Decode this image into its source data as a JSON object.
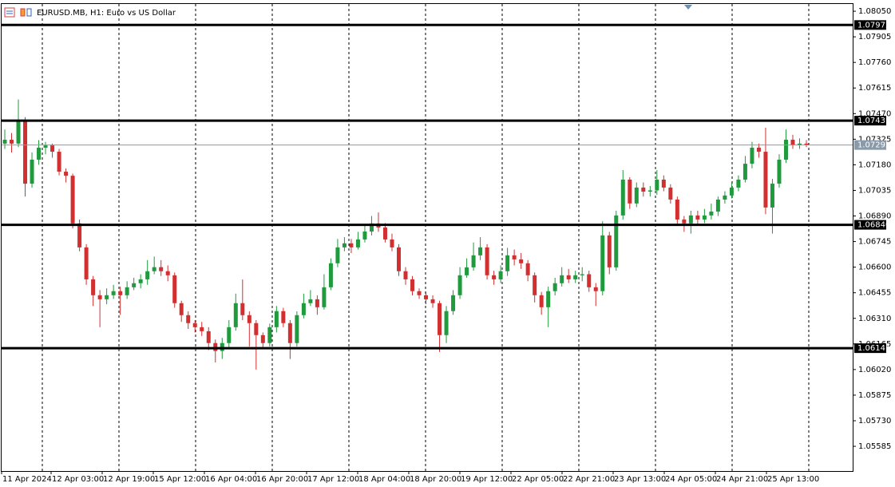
{
  "chart_data": {
    "type": "candlestick",
    "title": "EURUSD.MB, H1:  Euro vs US Dollar",
    "up_color": "#1f9a3c",
    "down_color": "#d23030",
    "ylim": [
      1.05445,
      1.08091
    ],
    "yticks": [
      {
        "value": 1.0805,
        "label": "1.08050"
      },
      1.07905,
      {
        "value": 1.0776,
        "label": "1.07760"
      },
      1.07615,
      {
        "value": 1.0747,
        "label": "1.07470"
      },
      1.07325,
      {
        "value": 1.0718,
        "label": "1.07180"
      },
      1.07035,
      {
        "value": 1.0689,
        "label": "1.06890"
      },
      1.06745,
      {
        "value": 1.066,
        "label": "1.06600"
      },
      1.06455,
      {
        "value": 1.0631,
        "label": "1.06310"
      },
      1.06165,
      {
        "value": 1.0602,
        "label": "1.06020"
      },
      1.05875,
      {
        "value": 1.0573,
        "label": "1.05730"
      },
      1.05585
    ],
    "levels": [
      1.07972,
      1.0743,
      {
        "value": 1.0684,
        "label": "1.06840"
      },
      1.06141
    ],
    "current_price": 1.07292,
    "x_labels": [
      "11 Apr 2024",
      "12 Apr 03:00",
      "12 Apr 19:00",
      "15 Apr 12:00",
      "16 Apr 04:00",
      "16 Apr 20:00",
      "17 Apr 12:00",
      "18 Apr 04:00",
      "18 Apr 20:00",
      "19 Apr 12:00",
      "22 Apr 05:00",
      "22 Apr 21:00",
      "23 Apr 13:00",
      "24 Apr 05:00",
      "24 Apr 21:00",
      "25 Apr 13:00"
    ],
    "ohlc": [
      [
        1.073,
        1.0738,
        1.0727,
        1.07322
      ],
      [
        1.07322,
        1.0736,
        1.0725,
        1.073
      ],
      [
        1.073,
        1.0755,
        1.0728,
        1.07435
      ],
      [
        1.07435,
        1.0745,
        1.07,
        1.07073
      ],
      [
        1.07073,
        1.0725,
        1.0705,
        1.07209
      ],
      [
        1.07209,
        1.0732,
        1.0718,
        1.07277
      ],
      [
        1.07277,
        1.0731,
        1.0724,
        1.0729
      ],
      [
        1.0729,
        1.073,
        1.0722,
        1.07254
      ],
      [
        1.07254,
        1.0727,
        1.0712,
        1.07141
      ],
      [
        1.07141,
        1.0716,
        1.0708,
        1.07118
      ],
      [
        1.07118,
        1.0713,
        1.0682,
        1.06848
      ],
      [
        1.06848,
        1.0687,
        1.0669,
        1.06712
      ],
      [
        1.06712,
        1.0673,
        1.065,
        1.06531
      ],
      [
        1.06531,
        1.0655,
        1.0638,
        1.06441
      ],
      [
        1.06441,
        1.0647,
        1.0626,
        1.06418
      ],
      [
        1.06418,
        1.0648,
        1.0639,
        1.06441
      ],
      [
        1.06441,
        1.065,
        1.0642,
        1.06464
      ],
      [
        1.06464,
        1.0649,
        1.0633,
        1.06441
      ],
      [
        1.06441,
        1.0652,
        1.0642,
        1.06486
      ],
      [
        1.06486,
        1.0654,
        1.0647,
        1.06509
      ],
      [
        1.06509,
        1.0656,
        1.0648,
        1.06531
      ],
      [
        1.06531,
        1.0664,
        1.065,
        1.06577
      ],
      [
        1.06577,
        1.0666,
        1.0656,
        1.066
      ],
      [
        1.066,
        1.0664,
        1.0655,
        1.06577
      ],
      [
        1.06577,
        1.0661,
        1.0652,
        1.06554
      ],
      [
        1.06554,
        1.0657,
        1.0637,
        1.06396
      ],
      [
        1.06396,
        1.0641,
        1.0629,
        1.06328
      ],
      [
        1.06328,
        1.0635,
        1.0625,
        1.06283
      ],
      [
        1.06283,
        1.063,
        1.0623,
        1.0626
      ],
      [
        1.0626,
        1.0629,
        1.0621,
        1.06237
      ],
      [
        1.06237,
        1.0626,
        1.0613,
        1.0617
      ],
      [
        1.0617,
        1.0619,
        1.0606,
        1.06125
      ],
      [
        1.06125,
        1.062,
        1.0608,
        1.0617
      ],
      [
        1.0617,
        1.063,
        1.0614,
        1.0626
      ],
      [
        1.0626,
        1.0645,
        1.0624,
        1.06396
      ],
      [
        1.06396,
        1.0653,
        1.063,
        1.06328
      ],
      [
        1.06328,
        1.0635,
        1.0615,
        1.06283
      ],
      [
        1.06283,
        1.063,
        1.0602,
        1.06215
      ],
      [
        1.06215,
        1.0623,
        1.0614,
        1.0617
      ],
      [
        1.0617,
        1.0628,
        1.0615,
        1.0626
      ],
      [
        1.0626,
        1.0638,
        1.0623,
        1.06351
      ],
      [
        1.06351,
        1.0637,
        1.0626,
        1.06283
      ],
      [
        1.06283,
        1.063,
        1.0608,
        1.0617
      ],
      [
        1.0617,
        1.0635,
        1.0615,
        1.06328
      ],
      [
        1.06328,
        1.0645,
        1.0631,
        1.06396
      ],
      [
        1.06396,
        1.0647,
        1.0638,
        1.06418
      ],
      [
        1.06418,
        1.0644,
        1.0633,
        1.06373
      ],
      [
        1.06373,
        1.0656,
        1.0636,
        1.06486
      ],
      [
        1.06486,
        1.0665,
        1.0647,
        1.06622
      ],
      [
        1.06622,
        1.0676,
        1.066,
        1.06712
      ],
      [
        1.06712,
        1.0677,
        1.0669,
        1.06735
      ],
      [
        1.06735,
        1.0676,
        1.0668,
        1.06712
      ],
      [
        1.06712,
        1.068,
        1.067,
        1.06757
      ],
      [
        1.06757,
        1.0684,
        1.0674,
        1.06802
      ],
      [
        1.06802,
        1.0689,
        1.0678,
        1.06848
      ],
      [
        1.06848,
        1.0691,
        1.068,
        1.06825
      ],
      [
        1.06825,
        1.0685,
        1.0674,
        1.06757
      ],
      [
        1.06757,
        1.0679,
        1.0669,
        1.06712
      ],
      [
        1.06712,
        1.0673,
        1.0655,
        1.06577
      ],
      [
        1.06577,
        1.066,
        1.065,
        1.06531
      ],
      [
        1.06531,
        1.0655,
        1.0644,
        1.06464
      ],
      [
        1.06464,
        1.0648,
        1.0642,
        1.06441
      ],
      [
        1.06441,
        1.0646,
        1.0639,
        1.06418
      ],
      [
        1.06418,
        1.0644,
        1.0637,
        1.06396
      ],
      [
        1.06396,
        1.0641,
        1.0612,
        1.06215
      ],
      [
        1.06215,
        1.0638,
        1.0617,
        1.06351
      ],
      [
        1.06351,
        1.0647,
        1.0633,
        1.06441
      ],
      [
        1.06441,
        1.066,
        1.0642,
        1.06554
      ],
      [
        1.06554,
        1.0665,
        1.0654,
        1.06599
      ],
      [
        1.06599,
        1.0674,
        1.0658,
        1.06667
      ],
      [
        1.06667,
        1.0677,
        1.0664,
        1.06712
      ],
      [
        1.06712,
        1.0673,
        1.0653,
        1.06554
      ],
      [
        1.06554,
        1.0658,
        1.065,
        1.06531
      ],
      [
        1.06531,
        1.0661,
        1.0651,
        1.06577
      ],
      [
        1.06577,
        1.0671,
        1.0655,
        1.06667
      ],
      [
        1.06667,
        1.067,
        1.0661,
        1.06644
      ],
      [
        1.06644,
        1.0668,
        1.0659,
        1.06622
      ],
      [
        1.06622,
        1.0664,
        1.0652,
        1.06554
      ],
      [
        1.06554,
        1.0657,
        1.064,
        1.06441
      ],
      [
        1.06441,
        1.0646,
        1.0633,
        1.06373
      ],
      [
        1.06373,
        1.0649,
        1.0626,
        1.06464
      ],
      [
        1.06464,
        1.0654,
        1.0644,
        1.06509
      ],
      [
        1.06509,
        1.066,
        1.0649,
        1.06554
      ],
      [
        1.06554,
        1.0659,
        1.0651,
        1.06531
      ],
      [
        1.06531,
        1.0658,
        1.0651,
        1.06554
      ],
      [
        1.06554,
        1.066,
        1.0652,
        1.0656
      ],
      [
        1.0656,
        1.0658,
        1.0646,
        1.06486
      ],
      [
        1.06486,
        1.0651,
        1.0638,
        1.06464
      ],
      [
        1.06464,
        1.0686,
        1.0644,
        1.0678
      ],
      [
        1.0678,
        1.068,
        1.0656,
        1.06599
      ],
      [
        1.06599,
        1.0692,
        1.0658,
        1.06893
      ],
      [
        1.06893,
        1.0715,
        1.0687,
        1.07096
      ],
      [
        1.07096,
        1.0711,
        1.0693,
        1.06961
      ],
      [
        1.06961,
        1.0708,
        1.0694,
        1.07051
      ],
      [
        1.07051,
        1.0708,
        1.07,
        1.07028
      ],
      [
        1.07028,
        1.0706,
        1.07,
        1.07035
      ],
      [
        1.07035,
        1.0715,
        1.0701,
        1.07096
      ],
      [
        1.07096,
        1.0712,
        1.0703,
        1.07051
      ],
      [
        1.07051,
        1.0707,
        1.0696,
        1.06983
      ],
      [
        1.06983,
        1.07,
        1.0684,
        1.0687
      ],
      [
        1.0687,
        1.0689,
        1.068,
        1.06848
      ],
      [
        1.06848,
        1.0692,
        1.0679,
        1.06893
      ],
      [
        1.06893,
        1.0692,
        1.0684,
        1.0687
      ],
      [
        1.0687,
        1.0693,
        1.0685,
        1.06893
      ],
      [
        1.06893,
        1.0696,
        1.0687,
        1.06915
      ],
      [
        1.06915,
        1.07,
        1.0689,
        1.06983
      ],
      [
        1.06983,
        1.0703,
        1.0696,
        1.07006
      ],
      [
        1.07006,
        1.0708,
        1.0699,
        1.07051
      ],
      [
        1.07051,
        1.0712,
        1.0703,
        1.07096
      ],
      [
        1.07096,
        1.0723,
        1.0708,
        1.07186
      ],
      [
        1.07186,
        1.0731,
        1.0716,
        1.07277
      ],
      [
        1.07277,
        1.073,
        1.0722,
        1.07254
      ],
      [
        1.07254,
        1.0739,
        1.069,
        1.06938
      ],
      [
        1.06938,
        1.071,
        1.0679,
        1.07073
      ],
      [
        1.07073,
        1.0724,
        1.0705,
        1.07209
      ],
      [
        1.07209,
        1.0738,
        1.0719,
        1.07322
      ],
      [
        1.07322,
        1.0735,
        1.0727,
        1.07292
      ],
      [
        1.07292,
        1.0733,
        1.0727,
        1.073
      ],
      [
        1.073,
        1.0732,
        1.0728,
        1.07292
      ]
    ]
  }
}
